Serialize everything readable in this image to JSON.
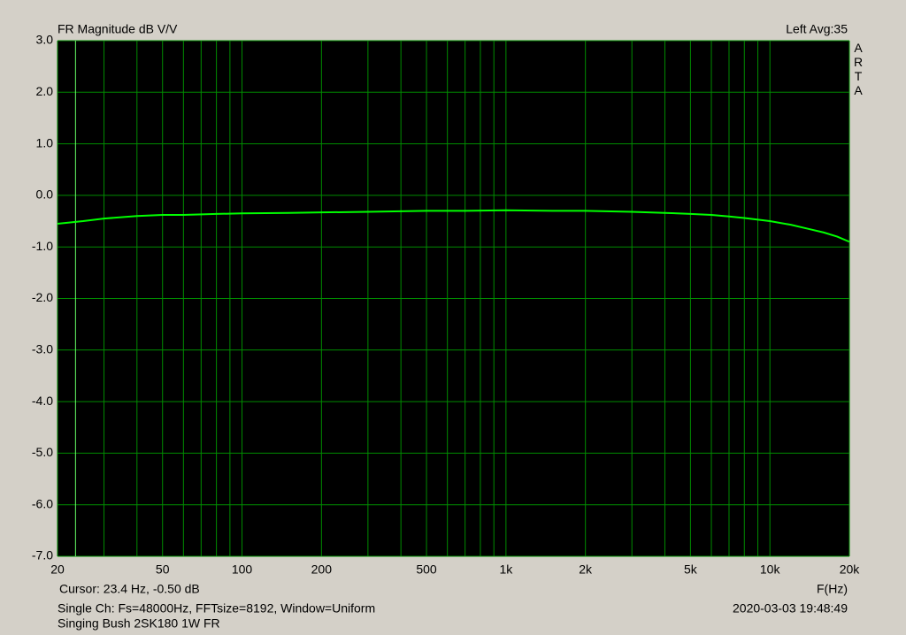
{
  "chart_data": {
    "type": "line",
    "title": "FR Magnitude dB V/V",
    "channel_label": "Left  Avg:35",
    "brand": "ARTA",
    "x_label": "F(Hz)",
    "cursor": {
      "label": "Cursor:    23.4 Hz, -0.50 dB",
      "x": 23.4,
      "y": -0.5
    },
    "info": "Single Ch: Fs=48000Hz, FFTsize=8192, Window=Uniform",
    "timestamp": "2020-03-03  19:48:49",
    "caption": "Singing Bush 2SK180 1W FR",
    "log_x": true,
    "grid": true,
    "background": "#000000",
    "grid_color": "#008c00",
    "xlim": [
      20,
      20000
    ],
    "ylim": [
      -7,
      3
    ],
    "xticks": [
      20,
      50,
      100,
      200,
      500,
      {
        "value": 1000,
        "label": "1k"
      },
      {
        "value": 2000,
        "label": "2k"
      },
      {
        "value": 5000,
        "label": "5k"
      },
      {
        "value": 10000,
        "label": "10k"
      },
      {
        "value": 20000,
        "label": "20k"
      }
    ],
    "x_minor_ticks": [
      30,
      40,
      60,
      70,
      80,
      90,
      300,
      400,
      600,
      700,
      800,
      900,
      3000,
      4000,
      6000,
      7000,
      8000,
      9000
    ],
    "yticks": [
      {
        "value": 3,
        "label": "3.0"
      },
      {
        "value": 2,
        "label": "2.0"
      },
      {
        "value": 1,
        "label": "1.0"
      },
      {
        "value": 0,
        "label": "0.0"
      },
      {
        "value": -1,
        "label": "-1.0"
      },
      {
        "value": -2,
        "label": "-2.0"
      },
      {
        "value": -3,
        "label": "-3.0"
      },
      {
        "value": -4,
        "label": "-4.0"
      },
      {
        "value": -5,
        "label": "-5.0"
      },
      {
        "value": -6,
        "label": "-6.0"
      },
      {
        "value": -7,
        "label": "-7.0"
      }
    ],
    "series": [
      {
        "name": "FR",
        "color": "#00ff00",
        "x": [
          20,
          25,
          30,
          40,
          50,
          60,
          80,
          100,
          150,
          200,
          300,
          500,
          700,
          1000,
          1500,
          2000,
          3000,
          4000,
          5000,
          6000,
          7000,
          8000,
          10000,
          12000,
          14000,
          16000,
          18000,
          20000
        ],
        "values": [
          -0.55,
          -0.5,
          -0.45,
          -0.4,
          -0.38,
          -0.38,
          -0.36,
          -0.35,
          -0.34,
          -0.33,
          -0.32,
          -0.3,
          -0.3,
          -0.29,
          -0.3,
          -0.3,
          -0.32,
          -0.34,
          -0.36,
          -0.38,
          -0.41,
          -0.44,
          -0.5,
          -0.57,
          -0.65,
          -0.72,
          -0.8,
          -0.9
        ]
      }
    ]
  }
}
